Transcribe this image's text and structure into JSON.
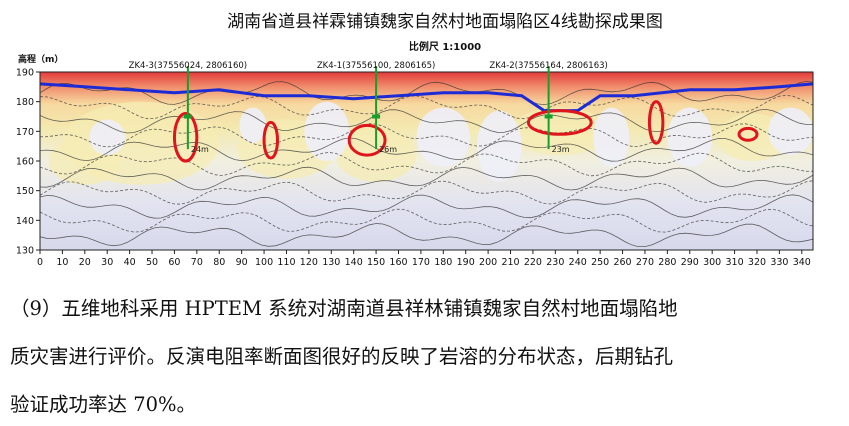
{
  "figure": {
    "title": "湖南省道县祥霖铺镇魏家自然村地面塌陷区4线勘探成果图",
    "scale": "比例尺 1:1000",
    "yaxis_label": "高程（m）",
    "boreholes": [
      {
        "label": "ZK4-3(37556024, 2806160)",
        "x": 66,
        "depth_label": "24m"
      },
      {
        "label": "ZK4-1(37556100, 2806165)",
        "x": 150,
        "depth_label": "26m"
      },
      {
        "label": "ZK4-2(37556164, 2806163)",
        "x": 227,
        "depth_label": "23m"
      }
    ],
    "colors": {
      "surface_line": "#1d2bd6",
      "anomaly": "#e0141b",
      "borehole": "#16a02a",
      "high_resistivity": "#e23a3a",
      "mid_resistivity": "#f3e9b0",
      "low_resistivity": "#e2e3f0"
    }
  },
  "chart_data": {
    "type": "heatmap",
    "title": "湖南省道县祥霖铺镇魏家自然村地面塌陷区4线勘探成果图",
    "subtitle": "比例尺 1:1000",
    "xlabel": "",
    "ylabel": "高程（m）",
    "xlim": [
      0,
      345
    ],
    "ylim": [
      130,
      190
    ],
    "x_ticks": [
      0,
      10,
      20,
      30,
      40,
      50,
      60,
      70,
      80,
      90,
      100,
      110,
      120,
      130,
      140,
      150,
      160,
      170,
      180,
      190,
      200,
      210,
      220,
      230,
      240,
      250,
      260,
      270,
      280,
      290,
      300,
      310,
      320,
      330,
      340
    ],
    "y_ticks": [
      130,
      140,
      150,
      160,
      170,
      180,
      190
    ],
    "surface_line": [
      [
        0,
        186
      ],
      [
        20,
        185
      ],
      [
        40,
        184
      ],
      [
        60,
        183
      ],
      [
        80,
        184
      ],
      [
        100,
        182
      ],
      [
        120,
        182
      ],
      [
        140,
        181
      ],
      [
        160,
        182
      ],
      [
        180,
        183
      ],
      [
        200,
        183
      ],
      [
        215,
        182
      ],
      [
        225,
        177
      ],
      [
        240,
        177
      ],
      [
        250,
        182
      ],
      [
        265,
        182
      ],
      [
        290,
        184
      ],
      [
        310,
        184
      ],
      [
        330,
        185
      ],
      [
        345,
        186
      ]
    ],
    "anomalies": [
      {
        "cx": 65,
        "cy": 168,
        "rx": 5,
        "ry": 8
      },
      {
        "cx": 103,
        "cy": 167,
        "rx": 3,
        "ry": 6
      },
      {
        "cx": 146,
        "cy": 167,
        "rx": 8,
        "ry": 5
      },
      {
        "cx": 232,
        "cy": 173,
        "rx": 14,
        "ry": 4
      },
      {
        "cx": 275,
        "cy": 173,
        "rx": 3,
        "ry": 7
      },
      {
        "cx": 316,
        "cy": 169,
        "rx": 4,
        "ry": 2
      }
    ],
    "grid": false
  },
  "caption": {
    "line1": "（9）五维地科采用 HPTEM 系统对湖南道县祥林铺镇魏家自然村地面塌陷地",
    "line2": "质灾害进行评价。反演电阻率断面图很好的反映了岩溶的分布状态，后期钻孔",
    "line3": "验证成功率达 70%。"
  }
}
